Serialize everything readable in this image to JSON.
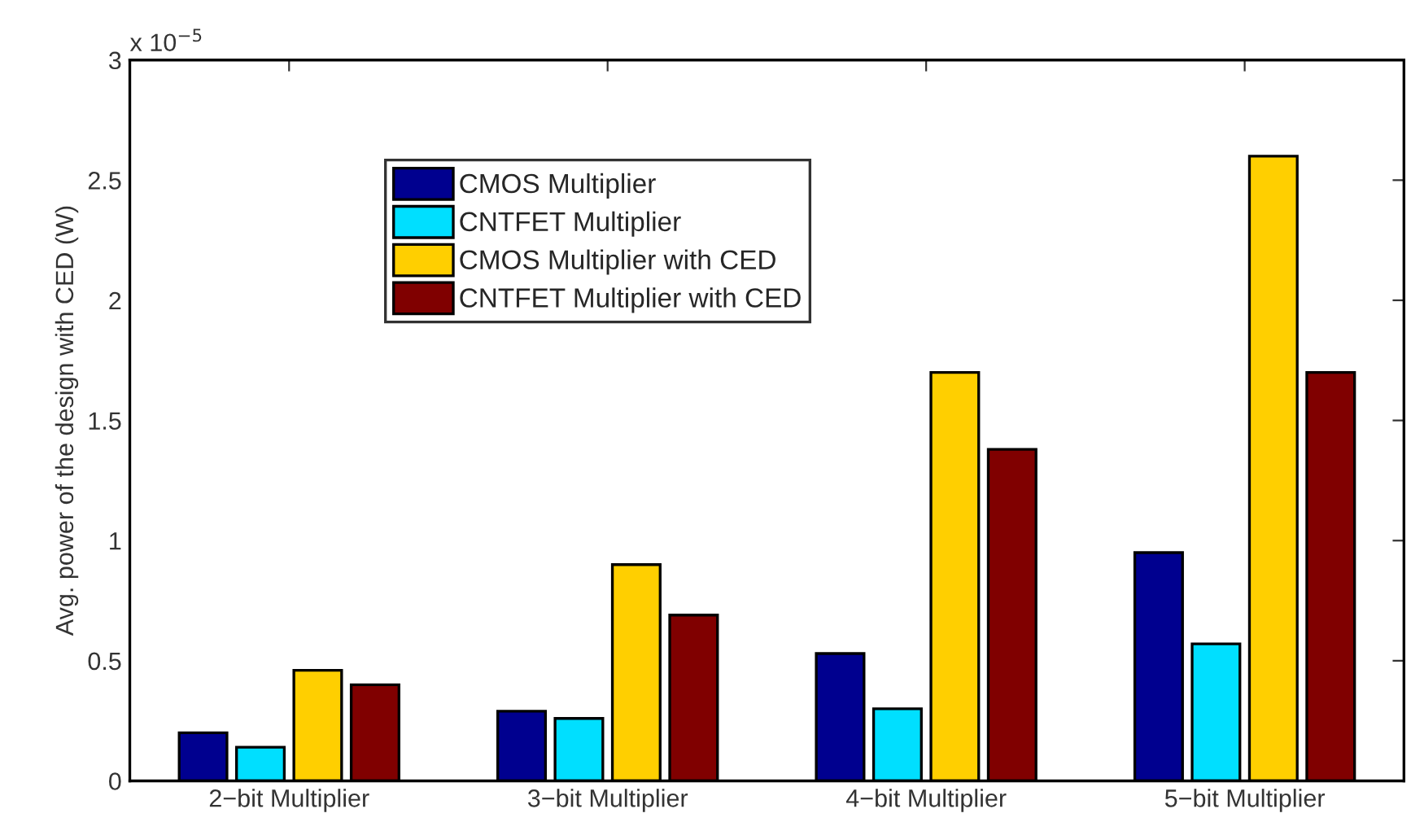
{
  "chart_data": {
    "type": "bar",
    "ylabel": "Avg. power of the design with CED (W)",
    "categories": [
      "2−bit Multiplier",
      "3−bit Multiplier",
      "4−bit Multiplier",
      "5−bit Multiplier"
    ],
    "series": [
      {
        "name": "CMOS Multiplier",
        "color": "#00008f",
        "values": [
          0.2,
          0.29,
          0.53,
          0.95
        ]
      },
      {
        "name": "CNTFET Multiplier",
        "color": "#00dfff",
        "values": [
          0.14,
          0.26,
          0.3,
          0.57
        ]
      },
      {
        "name": "CMOS Multiplier with CED",
        "color": "#ffcf00",
        "values": [
          0.46,
          0.9,
          1.7,
          2.6
        ]
      },
      {
        "name": "CNTFET Multiplier with CED",
        "color": "#800000",
        "values": [
          0.4,
          0.69,
          1.38,
          1.7
        ]
      }
    ],
    "ylim": [
      0,
      3
    ],
    "yticks": [
      0,
      0.5,
      1,
      1.5,
      2,
      2.5,
      3
    ],
    "annotations": [
      "x 10$^{−5}$"
    ],
    "grid": false,
    "legend": "top left"
  }
}
